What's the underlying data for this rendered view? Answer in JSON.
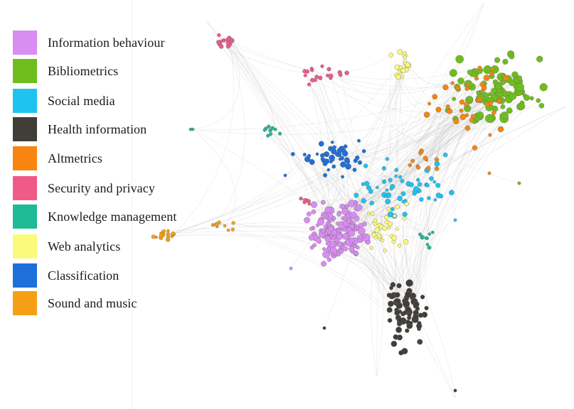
{
  "legend": {
    "items": [
      {
        "label": "Information behaviour",
        "color": "#d98cf2"
      },
      {
        "label": "Bibliometrics",
        "color": "#6fbd1c"
      },
      {
        "label": "Social media",
        "color": "#1ec3f0"
      },
      {
        "label": "Health information",
        "color": "#413d39"
      },
      {
        "label": "Altmetrics",
        "color": "#f7850f"
      },
      {
        "label": "Security and privacy",
        "color": "#f05a88"
      },
      {
        "label": "Knowledge management",
        "color": "#1fba96"
      },
      {
        "label": "Web analytics",
        "color": "#fbfa7a"
      },
      {
        "label": "Classification",
        "color": "#1e6fd9"
      },
      {
        "label": "Sound and music",
        "color": "#f5a014"
      }
    ]
  },
  "network": {
    "edge_color": "#b5b5b5",
    "node_outline": "#6b6b6b"
  }
}
